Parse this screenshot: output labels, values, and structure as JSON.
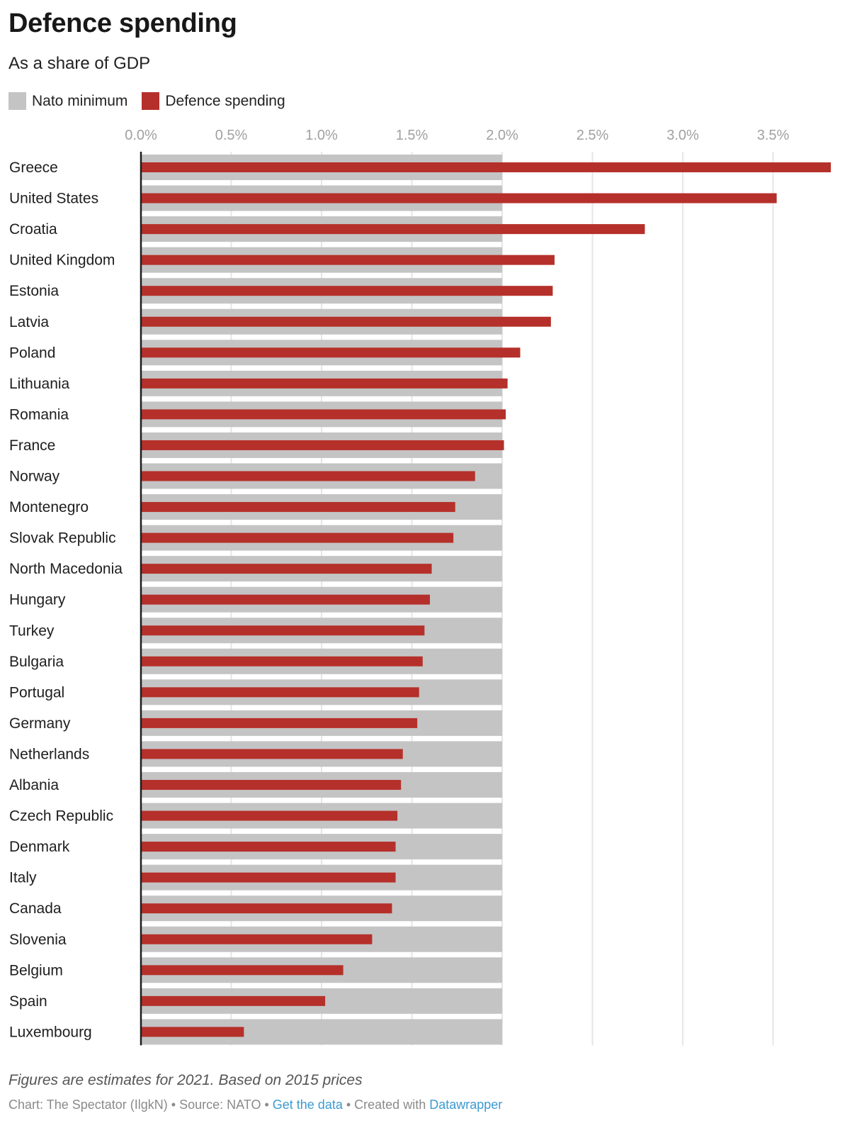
{
  "title": "Defence spending",
  "subtitle": "As a share of GDP",
  "legend": [
    {
      "label": "Nato minimum",
      "color": "#c4c4c4"
    },
    {
      "label": "Defence spending",
      "color": "#b5302a"
    }
  ],
  "footer": {
    "note": "Figures are estimates for 2021. Based on 2015 prices",
    "chart_credit": "Chart: The Spectator (IlgkN)",
    "separator": " • ",
    "source": "Source: NATO",
    "get_data_link": "Get the data",
    "created_with": "Created with",
    "datawrapper_link": "Datawrapper",
    "link_color": "#3b9ad1"
  },
  "chart_data": {
    "type": "bar",
    "orientation": "horizontal",
    "title": "Defence spending",
    "subtitle": "As a share of GDP",
    "xlabel": "",
    "ylabel": "",
    "xlim": [
      0,
      3.85
    ],
    "x_ticks": [
      0,
      0.5,
      1.0,
      1.5,
      2.0,
      2.5,
      3.0,
      3.5
    ],
    "x_tick_labels": [
      "0.0%",
      "0.5%",
      "1.0%",
      "1.5%",
      "2.0%",
      "2.5%",
      "3.0%",
      "3.5%"
    ],
    "grid": true,
    "legend_position": "top-left",
    "categories": [
      "Greece",
      "United States",
      "Croatia",
      "United Kingdom",
      "Estonia",
      "Latvia",
      "Poland",
      "Lithuania",
      "Romania",
      "France",
      "Norway",
      "Montenegro",
      "Slovak Republic",
      "North Macedonia",
      "Hungary",
      "Turkey",
      "Bulgaria",
      "Portugal",
      "Germany",
      "Netherlands",
      "Albania",
      "Czech Republic",
      "Denmark",
      "Italy",
      "Canada",
      "Slovenia",
      "Belgium",
      "Spain",
      "Luxembourg"
    ],
    "series": [
      {
        "name": "Nato minimum",
        "color": "#c4c4c4",
        "values": [
          2,
          2,
          2,
          2,
          2,
          2,
          2,
          2,
          2,
          2,
          2,
          2,
          2,
          2,
          2,
          2,
          2,
          2,
          2,
          2,
          2,
          2,
          2,
          2,
          2,
          2,
          2,
          2,
          2
        ]
      },
      {
        "name": "Defence spending",
        "color": "#b5302a",
        "values": [
          3.82,
          3.52,
          2.79,
          2.29,
          2.28,
          2.27,
          2.1,
          2.03,
          2.02,
          2.01,
          1.85,
          1.74,
          1.73,
          1.61,
          1.6,
          1.57,
          1.56,
          1.54,
          1.53,
          1.45,
          1.44,
          1.42,
          1.41,
          1.41,
          1.39,
          1.28,
          1.12,
          1.02,
          0.57
        ]
      }
    ]
  }
}
